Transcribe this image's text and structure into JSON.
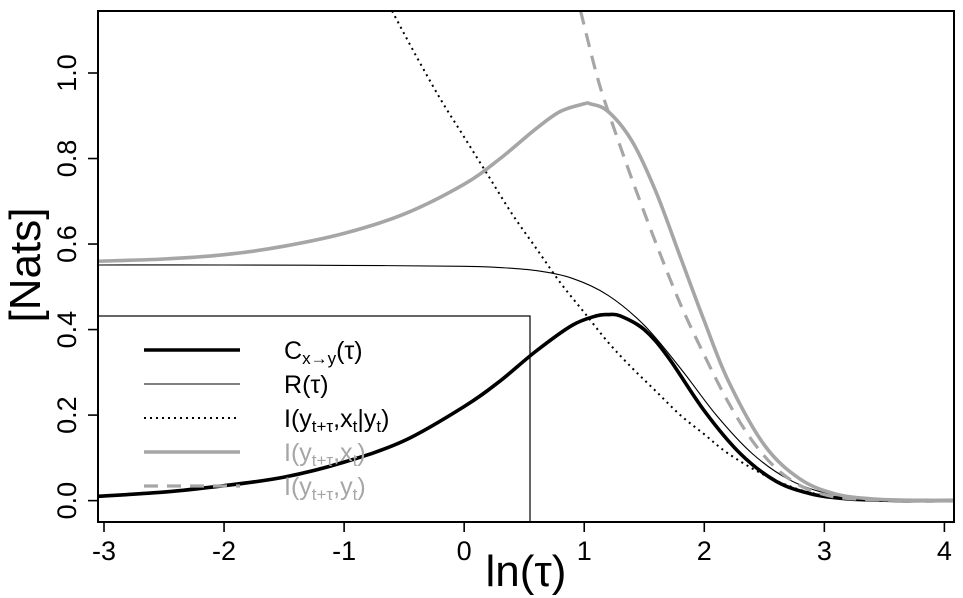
{
  "chart_data": {
    "type": "line",
    "xlabel": "ln(τ)",
    "ylabel": "[Nats]",
    "xlim": [
      -3.05,
      4.08
    ],
    "ylim": [
      -0.05,
      1.145
    ],
    "xticks": [
      "-3",
      "-2",
      "-1",
      "0",
      "1",
      "2",
      "3",
      "4"
    ],
    "yticks": [
      "0.0",
      "0.2",
      "0.4",
      "0.6",
      "0.8",
      "1.0"
    ],
    "grid": false,
    "legend_position": "bottom-left",
    "series": [
      {
        "key": "C",
        "legend": {
          "main": "C",
          "sub": "x→y",
          "tail": "(τ)"
        },
        "color": "#000000",
        "style": "solid-thick",
        "x": [
          -3.05,
          -2.5,
          -2.0,
          -1.5,
          -1.0,
          -0.5,
          0.0,
          0.3,
          0.6,
          0.9,
          1.1,
          1.2,
          1.3,
          1.5,
          1.7,
          2.0,
          2.3,
          2.6,
          2.9,
          3.2,
          3.5,
          3.8,
          4.08
        ],
        "y": [
          0.01,
          0.02,
          0.035,
          0.055,
          0.09,
          0.14,
          0.22,
          0.28,
          0.35,
          0.41,
          0.432,
          0.435,
          0.432,
          0.4,
          0.335,
          0.21,
          0.11,
          0.045,
          0.015,
          0.004,
          0.001,
          0.0,
          0.0
        ]
      },
      {
        "key": "R",
        "legend": {
          "main": "R",
          "sub": "",
          "tail": "(τ)"
        },
        "color": "#000000",
        "style": "solid-thin",
        "x": [
          -3.05,
          -2.0,
          -1.0,
          0.0,
          0.3,
          0.6,
          0.9,
          1.2,
          1.5,
          1.8,
          2.1,
          2.4,
          2.7,
          3.0,
          3.3,
          3.6,
          4.08
        ],
        "y": [
          0.551,
          0.551,
          0.55,
          0.548,
          0.545,
          0.538,
          0.52,
          0.48,
          0.41,
          0.31,
          0.2,
          0.11,
          0.05,
          0.018,
          0.005,
          0.001,
          0.0
        ]
      },
      {
        "key": "Icond",
        "legend": {
          "main": "I(y",
          "sub": "t+τ",
          "tail": ",x",
          "sub2": "t",
          "tail2": "|y",
          "sub3": "t",
          "tail3": ")"
        },
        "color": "#000000",
        "style": "dotted",
        "x": [
          -0.6,
          -0.4,
          -0.2,
          0.0,
          0.2,
          0.4,
          0.6,
          0.8,
          1.0,
          1.2,
          1.4,
          1.6,
          1.8,
          2.0,
          2.2,
          2.5,
          2.8,
          3.1,
          3.4,
          3.7,
          4.08
        ],
        "y": [
          1.145,
          1.04,
          0.94,
          0.85,
          0.76,
          0.67,
          0.59,
          0.51,
          0.44,
          0.37,
          0.31,
          0.255,
          0.2,
          0.155,
          0.11,
          0.06,
          0.025,
          0.008,
          0.002,
          0.0,
          0.0
        ]
      },
      {
        "key": "Ix",
        "legend": {
          "main": "I(y",
          "sub": "t+τ",
          "tail": ",x",
          "sub2": "t",
          "tail2": ")"
        },
        "color": "#a6a6a6",
        "style": "solid-thick",
        "x": [
          -3.05,
          -2.5,
          -2.0,
          -1.5,
          -1.0,
          -0.5,
          0.0,
          0.3,
          0.6,
          0.8,
          1.0,
          1.05,
          1.2,
          1.4,
          1.6,
          1.8,
          2.0,
          2.2,
          2.5,
          2.8,
          3.1,
          3.4,
          3.7,
          4.08
        ],
        "y": [
          0.56,
          0.565,
          0.575,
          0.595,
          0.625,
          0.67,
          0.74,
          0.8,
          0.87,
          0.91,
          0.928,
          0.928,
          0.91,
          0.84,
          0.72,
          0.57,
          0.42,
          0.28,
          0.13,
          0.05,
          0.015,
          0.004,
          0.001,
          0.0
        ]
      },
      {
        "key": "Iy",
        "legend": {
          "main": "I(y",
          "sub": "t+τ",
          "tail": ",y",
          "sub2": "t",
          "tail2": ")"
        },
        "color": "#a6a6a6",
        "style": "dashed",
        "x": [
          0.97,
          1.1,
          1.2,
          1.4,
          1.6,
          1.8,
          2.0,
          2.2,
          2.4,
          2.6,
          2.8,
          3.0,
          3.2,
          3.5,
          3.8,
          4.08
        ],
        "y": [
          1.145,
          1.0,
          0.91,
          0.75,
          0.6,
          0.46,
          0.34,
          0.23,
          0.14,
          0.075,
          0.035,
          0.014,
          0.005,
          0.001,
          0.0,
          0.0
        ]
      }
    ]
  }
}
